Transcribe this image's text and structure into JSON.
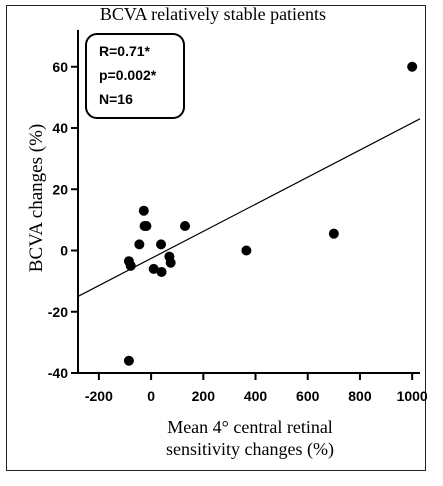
{
  "chart_data": {
    "type": "scatter",
    "title": "BCVA relatively stable patients",
    "xlabel": [
      "Mean 4° central retinal",
      "sensitivity changes (%)"
    ],
    "ylabel": "BCVA changes (%)",
    "xlim": [
      -280,
      1030
    ],
    "ylim": [
      -40,
      72
    ],
    "x_ticks": [
      -200,
      0,
      200,
      400,
      600,
      800,
      1000
    ],
    "y_ticks": [
      -40,
      -20,
      0,
      20,
      40,
      60
    ],
    "x_tick_labels": [
      "-200",
      "0",
      "200",
      "400",
      "600",
      "800",
      "1000"
    ],
    "y_tick_labels": [
      "-40",
      "-20",
      "0",
      "20",
      "40",
      "60"
    ],
    "points": [
      {
        "x": -85,
        "y": -36
      },
      {
        "x": -85,
        "y": -3.5
      },
      {
        "x": -78,
        "y": -5
      },
      {
        "x": -45,
        "y": 2
      },
      {
        "x": -28,
        "y": 13
      },
      {
        "x": -25,
        "y": 8
      },
      {
        "x": -18,
        "y": 8
      },
      {
        "x": 10,
        "y": -6
      },
      {
        "x": 38,
        "y": 2
      },
      {
        "x": 40,
        "y": -7
      },
      {
        "x": 70,
        "y": -2
      },
      {
        "x": 75,
        "y": -4
      },
      {
        "x": 130,
        "y": 8
      },
      {
        "x": 365,
        "y": 0
      },
      {
        "x": 700,
        "y": 5.5
      },
      {
        "x": 1000,
        "y": 60
      }
    ],
    "trendline": {
      "x": [
        -280,
        1030
      ],
      "y": [
        -15,
        43
      ]
    },
    "annotation": {
      "r": "R=0.71*",
      "p": "p=0.002*",
      "n": "N=16"
    }
  }
}
